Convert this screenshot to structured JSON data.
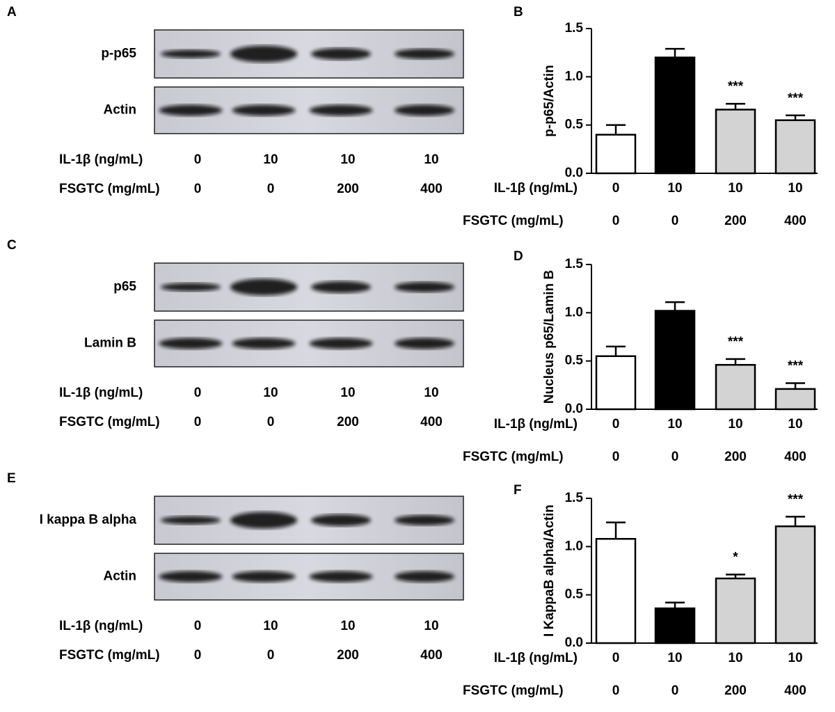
{
  "blots": [
    {
      "panel": "A",
      "rows": [
        {
          "label": "p-p65"
        },
        {
          "label": "Actin"
        }
      ],
      "conditions": [
        {
          "label": "IL-1β (ng/mL)",
          "values": [
            "0",
            "10",
            "10",
            "10"
          ]
        },
        {
          "label": "FSGTC (mg/mL)",
          "values": [
            "0",
            "0",
            "200",
            "400"
          ]
        }
      ]
    },
    {
      "panel": "C",
      "rows": [
        {
          "label": "p65"
        },
        {
          "label": "Lamin B"
        }
      ],
      "conditions": [
        {
          "label": "IL-1β (ng/mL)",
          "values": [
            "0",
            "10",
            "10",
            "10"
          ]
        },
        {
          "label": "FSGTC (mg/mL)",
          "values": [
            "0",
            "0",
            "200",
            "400"
          ]
        }
      ]
    },
    {
      "panel": "E",
      "rows": [
        {
          "label": "I kappa B alpha"
        },
        {
          "label": "Actin"
        }
      ],
      "conditions": [
        {
          "label": "IL-1β (ng/mL)",
          "values": [
            "0",
            "10",
            "10",
            "10"
          ]
        },
        {
          "label": "FSGTC (mg/mL)",
          "values": [
            "0",
            "0",
            "200",
            "400"
          ]
        }
      ]
    }
  ],
  "chart_data": [
    {
      "type": "bar",
      "panel": "B",
      "y_label": "p-p65/Actin",
      "values": [
        0.4,
        1.2,
        0.66,
        0.55
      ],
      "errors": [
        0.1,
        0.09,
        0.06,
        0.05
      ],
      "colors": [
        "#ffffff",
        "#000000",
        "#d3d3d3",
        "#d3d3d3"
      ],
      "annotations": [
        null,
        null,
        "***",
        "***"
      ],
      "ylim": [
        0,
        1.5
      ],
      "yticks": [
        {
          "value": 0,
          "label": "0.0"
        },
        0.5,
        {
          "value": 1,
          "label": "1.0"
        },
        1.5
      ],
      "conditions": [
        {
          "label": "IL-1β (ng/mL)",
          "values": [
            "0",
            "10",
            "10",
            "10"
          ]
        },
        {
          "label": "FSGTC (mg/mL)",
          "values": [
            "0",
            "0",
            "200",
            "400"
          ]
        }
      ]
    },
    {
      "type": "bar",
      "panel": "D",
      "y_label": "Nucleus p65/Lamin B",
      "values": [
        0.55,
        1.02,
        0.46,
        0.21
      ],
      "errors": [
        0.1,
        0.09,
        0.06,
        0.06
      ],
      "colors": [
        "#ffffff",
        "#000000",
        "#d3d3d3",
        "#d3d3d3"
      ],
      "annotations": [
        null,
        null,
        "***",
        "***"
      ],
      "ylim": [
        0,
        1.5
      ],
      "yticks": [
        {
          "value": 0,
          "label": "0.0"
        },
        0.5,
        {
          "value": 1,
          "label": "1.0"
        },
        1.5
      ],
      "conditions": [
        {
          "label": "IL-1β (ng/mL)",
          "values": [
            "0",
            "10",
            "10",
            "10"
          ]
        },
        {
          "label": "FSGTC (mg/mL)",
          "values": [
            "0",
            "0",
            "200",
            "400"
          ]
        }
      ]
    },
    {
      "type": "bar",
      "panel": "F",
      "y_label": "I KappaB alpha/Actin",
      "values": [
        1.08,
        0.36,
        0.67,
        1.21
      ],
      "errors": [
        0.17,
        0.06,
        0.04,
        0.1
      ],
      "colors": [
        "#ffffff",
        "#000000",
        "#d3d3d3",
        "#d3d3d3"
      ],
      "annotations": [
        null,
        null,
        "*",
        "***"
      ],
      "ylim": [
        0,
        1.5
      ],
      "yticks": [
        {
          "value": 0,
          "label": "0.0"
        },
        0.5,
        {
          "value": 1,
          "label": "1.0"
        },
        1.5
      ],
      "conditions": [
        {
          "label": "IL-1β (ng/mL)",
          "values": [
            "0",
            "10",
            "10",
            "10"
          ]
        },
        {
          "label": "FSGTC (mg/mL)",
          "values": [
            "0",
            "0",
            "200",
            "400"
          ]
        }
      ]
    }
  ]
}
